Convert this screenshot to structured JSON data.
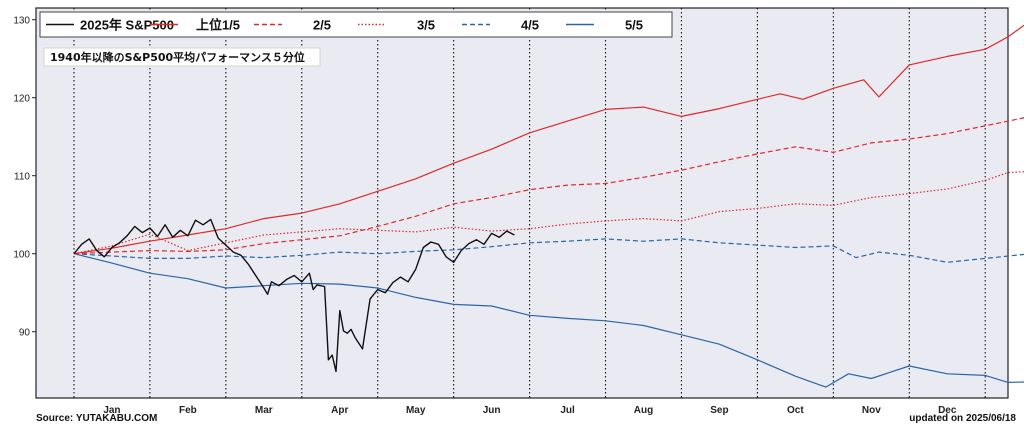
{
  "chart_data": {
    "type": "line",
    "annotation": "1940年以降のS&P500平均パフォーマンス５分位",
    "months": [
      "Jan",
      "Feb",
      "Mar",
      "Apr",
      "May",
      "Jun",
      "Jul",
      "Aug",
      "Sep",
      "Oct",
      "Nov",
      "Dec"
    ],
    "y_ticks": [
      90,
      100,
      110,
      120,
      130
    ],
    "ylim": [
      81.5,
      131.5
    ],
    "xlim": [
      -0.5,
      12.3
    ],
    "grid": "vertical dotted lines at month boundaries",
    "legend_placement": "top",
    "series": [
      {
        "name": "2025年 S&P500",
        "color": "#111111",
        "dash": "solid",
        "points": [
          [
            0,
            100
          ],
          [
            0.1,
            101.2
          ],
          [
            0.2,
            101.9
          ],
          [
            0.3,
            100.4
          ],
          [
            0.4,
            99.6
          ],
          [
            0.5,
            100.8
          ],
          [
            0.6,
            101.4
          ],
          [
            0.7,
            102.3
          ],
          [
            0.8,
            103.5
          ],
          [
            0.9,
            102.7
          ],
          [
            1,
            103.3
          ],
          [
            1.1,
            102.2
          ],
          [
            1.2,
            103.7
          ],
          [
            1.3,
            102.1
          ],
          [
            1.4,
            103.0
          ],
          [
            1.5,
            102.3
          ],
          [
            1.6,
            104.3
          ],
          [
            1.7,
            103.7
          ],
          [
            1.8,
            104.4
          ],
          [
            1.9,
            102.0
          ],
          [
            2.0,
            101.1
          ],
          [
            2.1,
            100.2
          ],
          [
            2.2,
            99.8
          ],
          [
            2.3,
            98.6
          ],
          [
            2.4,
            97.1
          ],
          [
            2.5,
            95.6
          ],
          [
            2.55,
            94.8
          ],
          [
            2.6,
            96.4
          ],
          [
            2.7,
            95.9
          ],
          [
            2.8,
            96.7
          ],
          [
            2.9,
            97.2
          ],
          [
            3.0,
            96.4
          ],
          [
            3.1,
            97.5
          ],
          [
            3.15,
            95.4
          ],
          [
            3.2,
            96.0
          ],
          [
            3.3,
            95.8
          ],
          [
            3.35,
            86.4
          ],
          [
            3.4,
            87.0
          ],
          [
            3.45,
            84.9
          ],
          [
            3.5,
            92.7
          ],
          [
            3.55,
            90.1
          ],
          [
            3.6,
            89.8
          ],
          [
            3.65,
            90.3
          ],
          [
            3.7,
            89.3
          ],
          [
            3.8,
            87.8
          ],
          [
            3.9,
            94.2
          ],
          [
            4.0,
            95.4
          ],
          [
            4.1,
            95.0
          ],
          [
            4.2,
            96.3
          ],
          [
            4.3,
            97.0
          ],
          [
            4.4,
            96.4
          ],
          [
            4.5,
            98.0
          ],
          [
            4.6,
            100.8
          ],
          [
            4.7,
            101.5
          ],
          [
            4.8,
            101.2
          ],
          [
            4.9,
            99.6
          ],
          [
            5.0,
            98.9
          ],
          [
            5.1,
            100.4
          ],
          [
            5.2,
            101.3
          ],
          [
            5.3,
            101.8
          ],
          [
            5.4,
            101.2
          ],
          [
            5.5,
            102.6
          ],
          [
            5.6,
            102.1
          ],
          [
            5.7,
            102.9
          ],
          [
            5.8,
            102.4
          ]
        ]
      },
      {
        "name": "上位1/5",
        "color": "#dd2a2a",
        "dash": "solid",
        "points": [
          [
            0,
            100
          ],
          [
            0.5,
            100.7
          ],
          [
            1,
            101.6
          ],
          [
            1.5,
            102.4
          ],
          [
            2,
            103.2
          ],
          [
            2.5,
            104.5
          ],
          [
            3,
            105.2
          ],
          [
            3.5,
            106.4
          ],
          [
            4,
            108.0
          ],
          [
            4.5,
            109.6
          ],
          [
            5,
            111.6
          ],
          [
            5.5,
            113.4
          ],
          [
            6,
            115.5
          ],
          [
            6.5,
            117.0
          ],
          [
            7,
            118.5
          ],
          [
            7.5,
            118.8
          ],
          [
            8,
            117.6
          ],
          [
            8.5,
            118.6
          ],
          [
            9,
            119.8
          ],
          [
            9.3,
            120.5
          ],
          [
            9.6,
            119.8
          ],
          [
            10,
            121.2
          ],
          [
            10.4,
            122.3
          ],
          [
            10.6,
            120.1
          ],
          [
            11,
            124.2
          ],
          [
            11.5,
            125.3
          ],
          [
            12,
            126.2
          ],
          [
            12.3,
            127.8
          ],
          [
            12.5,
            129.2
          ],
          [
            12.7,
            130.2
          ]
        ]
      },
      {
        "name": "2/5",
        "color": "#dd2a2a",
        "dash": "dashed",
        "points": [
          [
            0,
            100
          ],
          [
            0.5,
            100.2
          ],
          [
            1,
            100.4
          ],
          [
            1.5,
            100.3
          ],
          [
            2,
            100.5
          ],
          [
            2.5,
            101.3
          ],
          [
            3,
            101.8
          ],
          [
            3.5,
            102.3
          ],
          [
            4,
            103.5
          ],
          [
            4.5,
            104.8
          ],
          [
            5,
            106.4
          ],
          [
            5.5,
            107.2
          ],
          [
            6,
            108.2
          ],
          [
            6.5,
            108.8
          ],
          [
            7,
            109.0
          ],
          [
            7.5,
            109.8
          ],
          [
            8,
            110.7
          ],
          [
            8.5,
            111.8
          ],
          [
            9,
            112.8
          ],
          [
            9.5,
            113.7
          ],
          [
            10,
            113.0
          ],
          [
            10.5,
            114.2
          ],
          [
            11,
            114.7
          ],
          [
            11.5,
            115.4
          ],
          [
            12,
            116.4
          ],
          [
            12.5,
            117.4
          ],
          [
            12.7,
            118.4
          ]
        ]
      },
      {
        "name": "3/5",
        "color": "#dd2a2a",
        "dash": "dotted",
        "points": [
          [
            0,
            100
          ],
          [
            0.5,
            101.0
          ],
          [
            1,
            102.5
          ],
          [
            1.5,
            100.4
          ],
          [
            2,
            101.4
          ],
          [
            2.5,
            102.4
          ],
          [
            3,
            102.8
          ],
          [
            3.5,
            103.2
          ],
          [
            4,
            103.0
          ],
          [
            4.5,
            102.8
          ],
          [
            5,
            103.4
          ],
          [
            5.5,
            102.9
          ],
          [
            6,
            103.2
          ],
          [
            6.5,
            103.8
          ],
          [
            7,
            104.2
          ],
          [
            7.5,
            104.5
          ],
          [
            8,
            104.2
          ],
          [
            8.5,
            105.4
          ],
          [
            9,
            105.8
          ],
          [
            9.5,
            106.4
          ],
          [
            10,
            106.2
          ],
          [
            10.5,
            107.2
          ],
          [
            11,
            107.7
          ],
          [
            11.5,
            108.3
          ],
          [
            12,
            109.4
          ],
          [
            12.3,
            110.4
          ],
          [
            12.7,
            110.6
          ]
        ]
      },
      {
        "name": "4/5",
        "color": "#2a65a8",
        "dash": "dashed",
        "points": [
          [
            0,
            100
          ],
          [
            0.5,
            99.7
          ],
          [
            1,
            99.4
          ],
          [
            1.5,
            99.4
          ],
          [
            2,
            99.7
          ],
          [
            2.5,
            99.5
          ],
          [
            3,
            99.8
          ],
          [
            3.5,
            100.2
          ],
          [
            4,
            100.0
          ],
          [
            4.5,
            100.3
          ],
          [
            5,
            100.5
          ],
          [
            5.5,
            100.9
          ],
          [
            6,
            101.4
          ],
          [
            6.5,
            101.6
          ],
          [
            7,
            101.9
          ],
          [
            7.5,
            101.6
          ],
          [
            8,
            101.9
          ],
          [
            8.5,
            101.4
          ],
          [
            9,
            101.1
          ],
          [
            9.5,
            100.8
          ],
          [
            10,
            101.0
          ],
          [
            10.3,
            99.5
          ],
          [
            10.6,
            100.2
          ],
          [
            11,
            99.8
          ],
          [
            11.5,
            98.9
          ],
          [
            12,
            99.4
          ],
          [
            12.5,
            99.9
          ],
          [
            12.7,
            100.4
          ]
        ]
      },
      {
        "name": "5/5",
        "color": "#2a65a8",
        "dash": "solid",
        "points": [
          [
            0,
            100
          ],
          [
            0.5,
            98.8
          ],
          [
            1,
            97.5
          ],
          [
            1.5,
            96.8
          ],
          [
            2,
            95.6
          ],
          [
            2.5,
            95.9
          ],
          [
            3,
            96.2
          ],
          [
            3.5,
            96.1
          ],
          [
            4,
            95.6
          ],
          [
            4.5,
            94.4
          ],
          [
            5,
            93.5
          ],
          [
            5.5,
            93.3
          ],
          [
            6,
            92.1
          ],
          [
            6.5,
            91.7
          ],
          [
            7,
            91.4
          ],
          [
            7.5,
            90.8
          ],
          [
            8,
            89.6
          ],
          [
            8.5,
            88.4
          ],
          [
            9,
            86.4
          ],
          [
            9.5,
            84.3
          ],
          [
            9.9,
            82.9
          ],
          [
            10.2,
            84.6
          ],
          [
            10.5,
            84.0
          ],
          [
            11,
            85.6
          ],
          [
            11.5,
            84.6
          ],
          [
            12,
            84.4
          ],
          [
            12.3,
            83.5
          ],
          [
            12.7,
            83.6
          ]
        ]
      }
    ]
  },
  "footer": {
    "source": "Source: YUTAKABU.COM",
    "updated": "updated on 2025/06/18"
  }
}
